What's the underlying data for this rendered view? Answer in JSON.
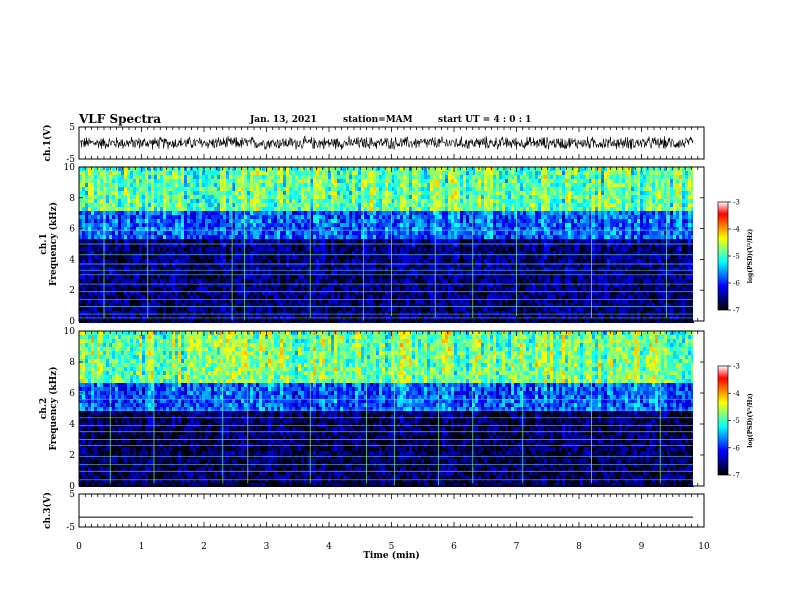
{
  "header": {
    "title": "VLF Spectra",
    "date": "Jan. 13, 2021",
    "station": "station=MAM",
    "start": "start UT =  4 : 0  : 1"
  },
  "colorbar": {
    "label": "log(PSD)(V²/Hz)",
    "ticks": [
      "-3",
      "-4",
      "-5",
      "-6",
      "-7"
    ],
    "range": [
      -7,
      -3
    ],
    "colormap": [
      "#000000",
      "#000080",
      "#0000ff",
      "#0080ff",
      "#00ffff",
      "#80ff80",
      "#ffff00",
      "#ff8000",
      "#ff0000",
      "#ffffff"
    ]
  },
  "chart_data": [
    {
      "type": "line",
      "title": "",
      "ylabel": "ch.1(V)",
      "ylim": [
        -5,
        5
      ],
      "yticks": [
        "5",
        "-5"
      ],
      "xlim": [
        0,
        10
      ],
      "description_values": {
        "approx_center": 0,
        "approx_amplitude": 1.8
      },
      "color": "#000000"
    },
    {
      "type": "heatmap",
      "ylabel_line1": "ch.1",
      "ylabel_line2": "Frequency (kHz)",
      "ylim": [
        0,
        10
      ],
      "yticks": [
        "0",
        "2",
        "4",
        "6",
        "8",
        "10"
      ],
      "xlim": [
        0,
        9.8
      ],
      "bands": [
        {
          "from": 0,
          "to": 5.5,
          "level": -6.6
        },
        {
          "from": 5.5,
          "to": 7.3,
          "level": -5.8
        },
        {
          "from": 7.3,
          "to": 10,
          "level": -4.9
        }
      ],
      "hum_lines_khz": [
        0.2,
        0.45,
        0.95,
        1.4,
        1.9,
        2.4,
        3.0,
        3.3,
        3.7,
        4.3,
        5.0,
        5.9
      ],
      "spike_times_min": [
        0.4,
        1.1,
        2.45,
        2.65,
        3.7,
        4.55,
        5.0,
        5.7,
        6.3,
        7.0,
        8.2,
        9.4
      ]
    },
    {
      "type": "heatmap",
      "ylabel_line1": "ch.2",
      "ylabel_line2": "Frequency (kHz)",
      "ylim": [
        0,
        10
      ],
      "yticks": [
        "0",
        "2",
        "4",
        "6",
        "8",
        "10"
      ],
      "xlim": [
        0,
        9.8
      ],
      "bands": [
        {
          "from": 0,
          "to": 5.0,
          "level": -6.7
        },
        {
          "from": 5.0,
          "to": 6.8,
          "level": -5.8
        },
        {
          "from": 6.8,
          "to": 10,
          "level": -4.8
        }
      ],
      "hum_lines_khz": [
        0.4,
        0.95,
        1.4,
        1.9,
        2.6,
        3.0,
        3.5,
        3.9,
        4.4,
        4.9,
        5.6
      ],
      "spike_times_min": [
        0.5,
        1.2,
        2.3,
        2.7,
        3.7,
        4.6,
        5.05,
        5.75,
        6.3,
        7.1,
        8.2,
        9.3
      ]
    },
    {
      "type": "line",
      "ylabel": "ch.3(V)",
      "ylim": [
        -5,
        5
      ],
      "yticks": [
        "5",
        "-5"
      ],
      "xlim": [
        0,
        10
      ],
      "values_constant": -2,
      "color": "#000000"
    }
  ],
  "xaxis": {
    "label": "Time (min)",
    "ticks": [
      "0",
      "1",
      "2",
      "3",
      "4",
      "5",
      "6",
      "7",
      "8",
      "9",
      "10"
    ],
    "range": [
      0,
      10
    ]
  }
}
